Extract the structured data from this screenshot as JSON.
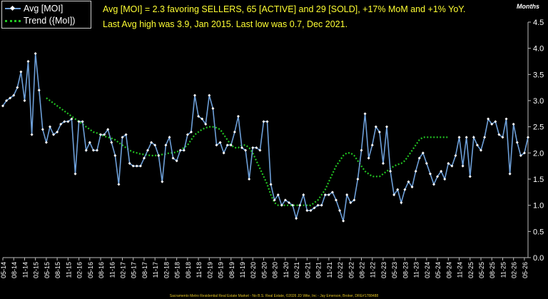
{
  "legend": {
    "series_label": "Avg [MOI]",
    "trend_label": "Trend ({MoI])"
  },
  "headline": {
    "line1": "Avg [MOI] = 2.3 favoring SELLERS, 65 [ACTIVE] and 29 [SOLD], +17% MoM and +1% YoY.",
    "line2": "Last Avg high was 3.9, Jan 2015. Last low was 0.7, Dec 2021."
  },
  "axis_unit_label": "Months",
  "footer": "Sacramento Metro Residential Real Estate Market - No B.S. Real Estate, ©2026 JD Wite, Inc - Jay Emerson, Broker, DRE#1788488",
  "colors": {
    "background": "#000000",
    "series_line": "#6d9fd8",
    "series_marker": "#ffffff",
    "trend_line": "#22c422",
    "headline_text": "#ffff33",
    "footer_text": "#e0c020"
  },
  "chart_data": {
    "type": "line",
    "title": "",
    "xlabel": "",
    "ylabel": "Months",
    "ylim": [
      0,
      4.5
    ],
    "yticks": [
      "0.0",
      "0.5",
      "1.0",
      "1.5",
      "2.0",
      "2.5",
      "3.0",
      "3.5",
      "4.0",
      "4.5"
    ],
    "y_axis_side": "right",
    "grid": false,
    "legend_position": "top-left",
    "x_start": "05-14",
    "x_end": "05-26",
    "x_tick_labels": [
      "05-14",
      "08-14",
      "11-14",
      "02-15",
      "05-15",
      "08-15",
      "11-15",
      "02-16",
      "05-16",
      "08-16",
      "11-16",
      "02-17",
      "05-17",
      "08-17",
      "11-17",
      "02-18",
      "05-18",
      "08-18",
      "11-18",
      "02-19",
      "05-19",
      "08-19",
      "11-19",
      "02-20",
      "05-20",
      "08-20",
      "11-20",
      "02-21",
      "05-21",
      "08-21",
      "11-21",
      "02-22",
      "05-22",
      "08-22",
      "11-22",
      "02-23",
      "05-23",
      "08-23",
      "11-23",
      "02-24",
      "05-24",
      "08-24",
      "11-24",
      "02-25",
      "05-25",
      "08-25",
      "11-25",
      "02-26",
      "05-26"
    ],
    "series": [
      {
        "name": "Avg [MOI]",
        "values": [
          2.9,
          3.0,
          3.05,
          3.1,
          3.25,
          3.55,
          3.0,
          3.75,
          2.35,
          3.9,
          3.2,
          2.45,
          2.2,
          2.5,
          2.35,
          2.4,
          2.55,
          2.6,
          2.6,
          2.65,
          1.6,
          2.6,
          2.6,
          2.05,
          2.2,
          2.05,
          2.05,
          2.35,
          2.35,
          2.45,
          2.2,
          1.95,
          1.4,
          2.3,
          2.35,
          1.8,
          1.75,
          1.75,
          1.75,
          1.9,
          2.05,
          2.2,
          2.15,
          1.95,
          1.45,
          2.15,
          2.3,
          1.9,
          1.85,
          2.05,
          2.05,
          2.35,
          2.4,
          3.1,
          2.7,
          2.65,
          2.55,
          3.1,
          2.85,
          2.15,
          2.2,
          2.0,
          2.15,
          2.15,
          2.4,
          2.7,
          2.1,
          2.05,
          1.5,
          2.1,
          2.1,
          2.05,
          2.6,
          2.6,
          1.4,
          1.1,
          1.2,
          1.0,
          1.1,
          1.05,
          1.0,
          0.75,
          1.0,
          1.2,
          0.9,
          0.9,
          0.95,
          1.0,
          1.0,
          1.2,
          1.2,
          1.25,
          1.1,
          0.9,
          0.7,
          1.2,
          1.05,
          1.1,
          1.5,
          2.05,
          2.75,
          1.9,
          2.15,
          2.5,
          2.4,
          1.8,
          2.5,
          1.65,
          1.2,
          1.3,
          1.05,
          1.3,
          1.45,
          1.35,
          1.65,
          1.9,
          2.0,
          1.8,
          1.6,
          1.4,
          1.55,
          1.65,
          1.5,
          1.8,
          1.75,
          1.95,
          2.3,
          1.75,
          2.3,
          1.55,
          2.3,
          2.15,
          2.05,
          2.3,
          2.65,
          2.55,
          2.6,
          2.35,
          2.3,
          2.65,
          1.6,
          2.55,
          2.2,
          1.95,
          2.0,
          2.3
        ]
      },
      {
        "name": "Trend ({MoI])",
        "start_index": 12,
        "values": [
          3.05,
          3.0,
          2.95,
          2.9,
          2.85,
          2.8,
          2.75,
          2.7,
          2.65,
          2.6,
          2.55,
          2.5,
          2.45,
          2.4,
          2.38,
          2.35,
          2.32,
          2.3,
          2.28,
          2.25,
          2.2,
          2.15,
          2.1,
          2.05,
          2.02,
          2.0,
          1.98,
          1.97,
          1.96,
          1.95,
          1.95,
          1.96,
          1.97,
          1.98,
          2.0,
          2.0,
          2.02,
          2.05,
          2.1,
          2.15,
          2.25,
          2.35,
          2.4,
          2.45,
          2.48,
          2.5,
          2.5,
          2.48,
          2.45,
          2.35,
          2.25,
          2.15,
          2.1,
          2.1,
          2.15,
          2.15,
          2.1,
          2.0,
          1.85,
          1.7,
          1.55,
          1.4,
          1.2,
          1.05,
          1.0,
          1.0,
          1.0,
          1.0,
          1.0,
          1.0,
          1.0,
          1.0,
          1.0,
          1.0,
          1.05,
          1.1,
          1.2,
          1.3,
          1.45,
          1.6,
          1.75,
          1.85,
          1.95,
          2.0,
          2.0,
          1.95,
          1.85,
          1.75,
          1.65,
          1.6,
          1.55,
          1.55,
          1.55,
          1.6,
          1.65,
          1.7,
          1.75,
          1.78,
          1.8,
          1.85,
          1.95,
          2.05,
          2.15,
          2.25,
          2.3,
          2.3,
          2.3,
          2.3,
          2.3,
          2.3,
          2.3,
          2.3
        ]
      }
    ]
  }
}
